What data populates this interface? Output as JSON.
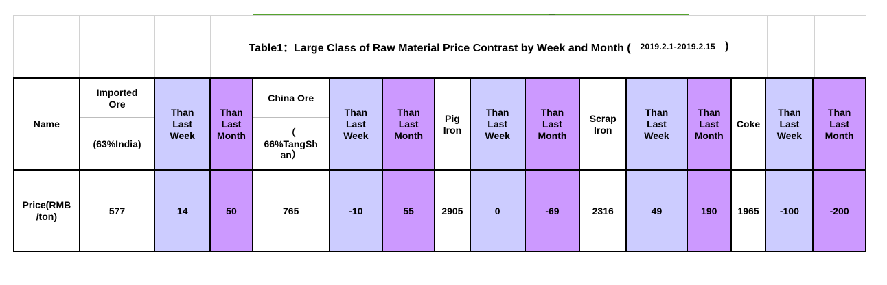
{
  "title": {
    "prefix": "Table1：Large Class of Raw Material Price Contrast by Week and Month (",
    "date_range": "2019.2.1-2019.2.15",
    "suffix": ")"
  },
  "colors": {
    "than_last_week_bg": "#ccccff",
    "than_last_month_bg": "#cc99ff",
    "accent_line_green": "#55a32e",
    "grid_line_gray": "#d2d2d2",
    "table_border": "#000000"
  },
  "table": {
    "columns": [
      {
        "label": "Name",
        "value": "Price(RMB\n/ton)",
        "bg": "white"
      },
      {
        "label": "Imported\nOre",
        "sublabel": "(63%India)",
        "value": "577",
        "bg": "white"
      },
      {
        "label": "Than\nLast\nWeek",
        "value": "14",
        "bg": "week"
      },
      {
        "label": "Than\nLast\nMonth",
        "value": "50",
        "bg": "month"
      },
      {
        "label": "China Ore",
        "sublabel": "（\n66%TangSh\nan）",
        "value": "765",
        "bg": "white"
      },
      {
        "label": "Than\nLast\nWeek",
        "value": "-10",
        "bg": "week"
      },
      {
        "label": "Than\nLast\nMonth",
        "value": "55",
        "bg": "month"
      },
      {
        "label": "Pig\nIron",
        "value": "2905",
        "bg": "white"
      },
      {
        "label": "Than\nLast\nWeek",
        "value": "0",
        "bg": "week"
      },
      {
        "label": "Than\nLast\nMonth",
        "value": "-69",
        "bg": "month"
      },
      {
        "label": "Scrap\nIron",
        "value": "2316",
        "bg": "white"
      },
      {
        "label": "Than\nLast\nWeek",
        "value": "49",
        "bg": "week"
      },
      {
        "label": "Than\nLast\nMonth",
        "value": "190",
        "bg": "month"
      },
      {
        "label": "Coke",
        "value": "1965",
        "bg": "white"
      },
      {
        "label": "Than\nLast\nWeek",
        "value": "-100",
        "bg": "week"
      },
      {
        "label": "Than\nLast\nMonth",
        "value": "-200",
        "bg": "month"
      }
    ]
  }
}
